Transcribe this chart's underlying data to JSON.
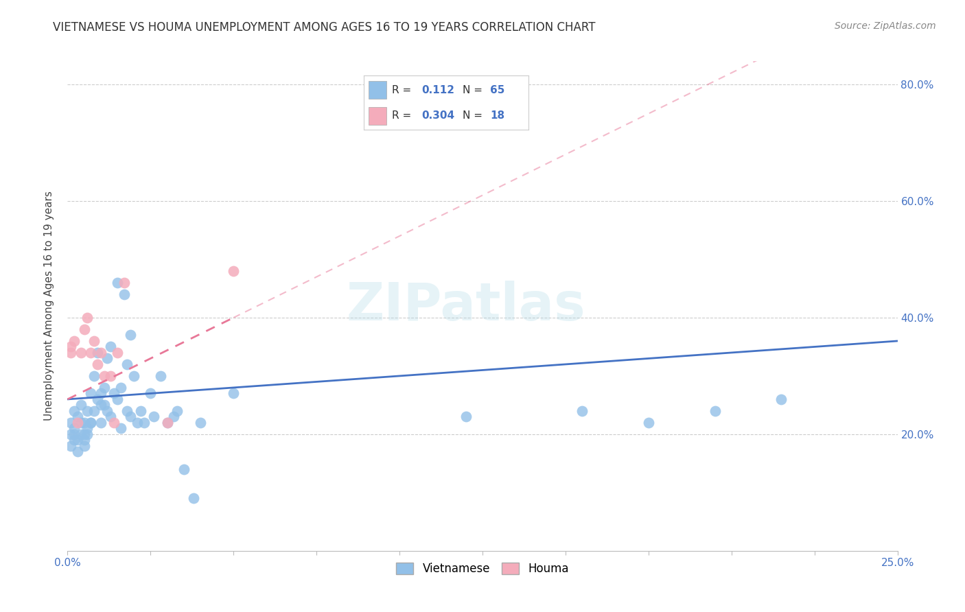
{
  "title": "VIETNAMESE VS HOUMA UNEMPLOYMENT AMONG AGES 16 TO 19 YEARS CORRELATION CHART",
  "source": "Source: ZipAtlas.com",
  "ylabel": "Unemployment Among Ages 16 to 19 years",
  "xlim": [
    0.0,
    0.25
  ],
  "ylim": [
    0.0,
    0.84
  ],
  "watermark": "ZIPatlas",
  "viet_color": "#92C0E8",
  "houma_color": "#F4ACBB",
  "viet_line_color": "#4472C4",
  "houma_line_color": "#E87898",
  "background_color": "#FFFFFF",
  "grid_color": "#CCCCCC",
  "viet_x": [
    0.001,
    0.001,
    0.001,
    0.002,
    0.002,
    0.002,
    0.002,
    0.003,
    0.003,
    0.003,
    0.004,
    0.004,
    0.004,
    0.005,
    0.005,
    0.005,
    0.005,
    0.006,
    0.006,
    0.006,
    0.007,
    0.007,
    0.007,
    0.008,
    0.008,
    0.009,
    0.009,
    0.01,
    0.01,
    0.01,
    0.011,
    0.011,
    0.012,
    0.012,
    0.013,
    0.013,
    0.014,
    0.015,
    0.015,
    0.016,
    0.016,
    0.017,
    0.018,
    0.018,
    0.019,
    0.019,
    0.02,
    0.021,
    0.022,
    0.023,
    0.025,
    0.026,
    0.028,
    0.03,
    0.032,
    0.033,
    0.035,
    0.038,
    0.04,
    0.05,
    0.12,
    0.155,
    0.175,
    0.195,
    0.215
  ],
  "viet_y": [
    0.18,
    0.2,
    0.22,
    0.19,
    0.21,
    0.24,
    0.2,
    0.17,
    0.23,
    0.19,
    0.2,
    0.22,
    0.25,
    0.18,
    0.2,
    0.22,
    0.19,
    0.21,
    0.24,
    0.2,
    0.22,
    0.27,
    0.22,
    0.24,
    0.3,
    0.26,
    0.34,
    0.22,
    0.27,
    0.25,
    0.28,
    0.25,
    0.33,
    0.24,
    0.35,
    0.23,
    0.27,
    0.26,
    0.46,
    0.28,
    0.21,
    0.44,
    0.24,
    0.32,
    0.37,
    0.23,
    0.3,
    0.22,
    0.24,
    0.22,
    0.27,
    0.23,
    0.3,
    0.22,
    0.23,
    0.24,
    0.14,
    0.09,
    0.22,
    0.27,
    0.23,
    0.24,
    0.22,
    0.24,
    0.26
  ],
  "houma_x": [
    0.001,
    0.001,
    0.002,
    0.003,
    0.004,
    0.005,
    0.006,
    0.007,
    0.008,
    0.009,
    0.01,
    0.011,
    0.013,
    0.014,
    0.015,
    0.017,
    0.03,
    0.05
  ],
  "houma_y": [
    0.34,
    0.35,
    0.36,
    0.22,
    0.34,
    0.38,
    0.4,
    0.34,
    0.36,
    0.32,
    0.34,
    0.3,
    0.3,
    0.22,
    0.34,
    0.46,
    0.22,
    0.48
  ],
  "viet_trendline_x0": 0.0,
  "viet_trendline_y0": 0.26,
  "viet_trendline_x1": 0.25,
  "viet_trendline_y1": 0.36,
  "houma_trendline_x0": 0.0,
  "houma_trendline_y0": 0.26,
  "houma_trendline_x1": 0.05,
  "houma_trendline_y1": 0.4
}
